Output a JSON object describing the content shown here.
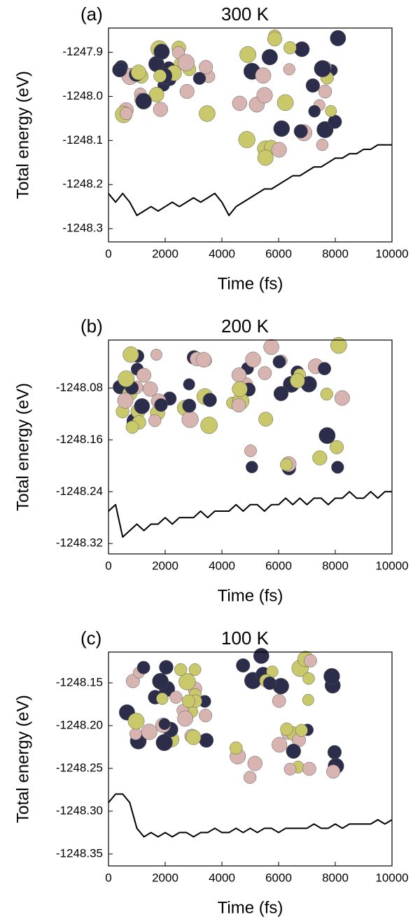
{
  "chart_data": [
    {
      "type": "line",
      "panel_label": "(a)",
      "title": "300 K",
      "x_label": "Time (fs)",
      "y_label": "Total energy (eV)",
      "x": [
        0,
        250,
        500,
        750,
        1000,
        1250,
        1500,
        1750,
        2000,
        2250,
        2500,
        2750,
        3000,
        3250,
        3500,
        3750,
        4000,
        4250,
        4500,
        4750,
        5000,
        5250,
        5500,
        5750,
        6000,
        6250,
        6500,
        6750,
        7000,
        7250,
        7500,
        7750,
        8000,
        8250,
        8500,
        8750,
        9000,
        9250,
        9500,
        9750,
        10000
      ],
      "series": [
        {
          "color": "#000000",
          "values": [
            -1248.22,
            -1248.24,
            -1248.22,
            -1248.24,
            -1248.27,
            -1248.26,
            -1248.25,
            -1248.26,
            -1248.25,
            -1248.24,
            -1248.25,
            -1248.24,
            -1248.23,
            -1248.24,
            -1248.23,
            -1248.22,
            -1248.24,
            -1248.27,
            -1248.25,
            -1248.24,
            -1248.23,
            -1248.22,
            -1248.21,
            -1248.21,
            -1248.2,
            -1248.19,
            -1248.18,
            -1248.18,
            -1248.17,
            -1248.16,
            -1248.16,
            -1248.15,
            -1248.14,
            -1248.14,
            -1248.13,
            -1248.13,
            -1248.12,
            -1248.12,
            -1248.11,
            -1248.11,
            -1248.11
          ]
        }
      ],
      "xlim": [
        0,
        10000
      ],
      "xticks": [
        0,
        2000,
        4000,
        6000,
        8000,
        10000
      ],
      "ylim": [
        -1248.33,
        -1247.845
      ],
      "yticks": [
        {
          "value": -1248.3,
          "label": "-1248.3"
        },
        {
          "value": -1248.2,
          "label": "-1248.2"
        },
        {
          "value": -1248.1,
          "label": "-1248.1"
        },
        {
          "value": -1248.0,
          "label": "-1248.0"
        },
        {
          "value": -1247.9,
          "label": "-1247.9"
        }
      ]
    },
    {
      "type": "line",
      "panel_label": "(b)",
      "title": "200 K",
      "x_label": "Time (fs)",
      "y_label": "Total energy (eV)",
      "x": [
        0,
        250,
        500,
        750,
        1000,
        1250,
        1500,
        1750,
        2000,
        2250,
        2500,
        2750,
        3000,
        3250,
        3500,
        3750,
        4000,
        4250,
        4500,
        4750,
        5000,
        5250,
        5500,
        5750,
        6000,
        6250,
        6500,
        6750,
        7000,
        7250,
        7500,
        7750,
        8000,
        8250,
        8500,
        8750,
        9000,
        9250,
        9500,
        9750,
        10000
      ],
      "series": [
        {
          "color": "#000000",
          "values": [
            -1248.27,
            -1248.26,
            -1248.31,
            -1248.3,
            -1248.29,
            -1248.3,
            -1248.29,
            -1248.29,
            -1248.28,
            -1248.29,
            -1248.28,
            -1248.28,
            -1248.28,
            -1248.27,
            -1248.28,
            -1248.27,
            -1248.27,
            -1248.27,
            -1248.26,
            -1248.27,
            -1248.26,
            -1248.26,
            -1248.27,
            -1248.26,
            -1248.26,
            -1248.25,
            -1248.26,
            -1248.25,
            -1248.26,
            -1248.25,
            -1248.25,
            -1248.26,
            -1248.25,
            -1248.25,
            -1248.24,
            -1248.25,
            -1248.25,
            -1248.24,
            -1248.25,
            -1248.24,
            -1248.24
          ]
        }
      ],
      "xlim": [
        0,
        10000
      ],
      "xticks": [
        0,
        2000,
        4000,
        6000,
        8000,
        10000
      ],
      "ylim": [
        -1248.336,
        -1248.006
      ],
      "yticks": [
        -1248.32,
        -1248.24,
        -1248.16,
        -1248.08
      ]
    },
    {
      "type": "line",
      "panel_label": "(c)",
      "title": "100 K",
      "x_label": "Time (fs)",
      "y_label": "Total energy (eV)",
      "x": [
        0,
        250,
        500,
        750,
        1000,
        1250,
        1500,
        1750,
        2000,
        2250,
        2500,
        2750,
        3000,
        3250,
        3500,
        3750,
        4000,
        4250,
        4500,
        4750,
        5000,
        5250,
        5500,
        5750,
        6000,
        6250,
        6500,
        6750,
        7000,
        7250,
        7500,
        7750,
        8000,
        8250,
        8500,
        8750,
        9000,
        9250,
        9500,
        9750,
        10000
      ],
      "series": [
        {
          "color": "#000000",
          "values": [
            -1248.29,
            -1248.28,
            -1248.28,
            -1248.29,
            -1248.32,
            -1248.33,
            -1248.325,
            -1248.33,
            -1248.325,
            -1248.33,
            -1248.325,
            -1248.325,
            -1248.33,
            -1248.325,
            -1248.325,
            -1248.32,
            -1248.325,
            -1248.325,
            -1248.32,
            -1248.325,
            -1248.32,
            -1248.325,
            -1248.32,
            -1248.32,
            -1248.325,
            -1248.32,
            -1248.32,
            -1248.32,
            -1248.32,
            -1248.315,
            -1248.32,
            -1248.32,
            -1248.315,
            -1248.32,
            -1248.315,
            -1248.315,
            -1248.315,
            -1248.315,
            -1248.31,
            -1248.315,
            -1248.31
          ]
        }
      ],
      "xlim": [
        0,
        10000
      ],
      "xticks": [
        0,
        2000,
        4000,
        6000,
        8000,
        10000
      ],
      "ylim": [
        -1248.364,
        -1248.114
      ],
      "yticks": [
        -1248.35,
        {
          "value": -1248.3,
          "label": "-1248.30"
        },
        -1248.25,
        {
          "value": -1248.2,
          "label": "-1248.20"
        },
        -1248.15
      ]
    }
  ]
}
